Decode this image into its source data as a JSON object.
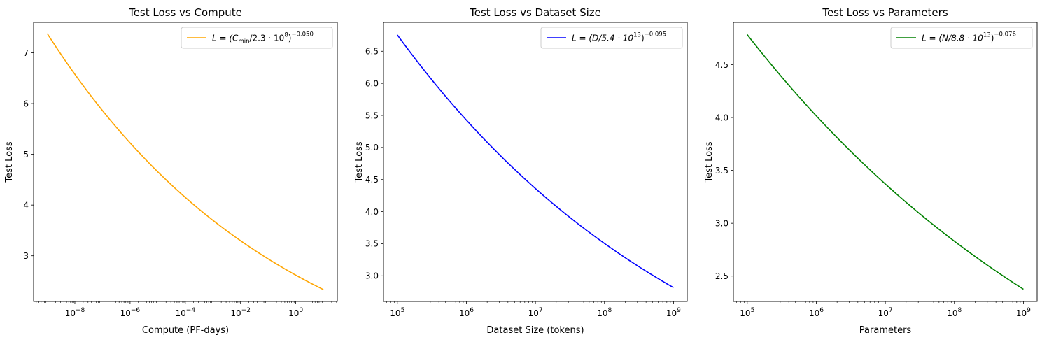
{
  "chart_data": [
    {
      "type": "line",
      "title": "Test Loss vs Compute",
      "xlabel": "Compute (PF-days)",
      "ylabel": "Test Loss",
      "xscale": "log",
      "xlim": [
        3.2e-10,
        32
      ],
      "ylim": [
        2.1,
        7.6
      ],
      "x_ticks": [
        {
          "exp": "−8",
          "value": 1e-08
        },
        {
          "exp": "−6",
          "value": 1e-06
        },
        {
          "exp": "−4",
          "value": 0.0001
        },
        {
          "exp": "−2",
          "value": 0.01
        },
        {
          "exp": "0",
          "value": 1
        }
      ],
      "y_ticks": [
        "3",
        "4",
        "5",
        "6",
        "7"
      ],
      "series": [
        {
          "name": "L = (C_min/2.3 · 10^8)^−0.050",
          "legend": {
            "main": "L = (C",
            "sub": "min",
            "rest": "/2.3 · 10",
            "exp1": "8",
            "close": ")",
            "exp2": "−0.050"
          },
          "color": "#ffa500",
          "x_range": [
            1e-09,
            10
          ],
          "exponent": -0.05,
          "scale": 230000000.0
        }
      ],
      "legend_position": "top-right"
    },
    {
      "type": "line",
      "title": "Test Loss vs Dataset Size",
      "xlabel": "Dataset Size (tokens)",
      "ylabel": "Test Loss",
      "xscale": "log",
      "xlim": [
        63000,
        1580000000.0
      ],
      "ylim": [
        2.6,
        6.95
      ],
      "x_ticks": [
        {
          "exp": "5",
          "value": 100000.0
        },
        {
          "exp": "6",
          "value": 1000000.0
        },
        {
          "exp": "7",
          "value": 10000000.0
        },
        {
          "exp": "8",
          "value": 100000000.0
        },
        {
          "exp": "9",
          "value": 1000000000.0
        }
      ],
      "y_ticks": [
        "3.0",
        "3.5",
        "4.0",
        "4.5",
        "5.0",
        "5.5",
        "6.0",
        "6.5"
      ],
      "series": [
        {
          "name": "L = (D/5.4 · 10^13)^−0.095",
          "legend": {
            "main": "L = (D/5.4 · 10",
            "exp1": "13",
            "close": ")",
            "exp2": "−0.095"
          },
          "color": "#0000ff",
          "x_range": [
            100000.0,
            1000000000.0
          ],
          "exponent": -0.095,
          "scale": 54000000000000.0
        }
      ],
      "legend_position": "top-right"
    },
    {
      "type": "line",
      "title": "Test Loss vs Parameters",
      "xlabel": "Parameters",
      "ylabel": "Test Loss",
      "xscale": "log",
      "xlim": [
        63000,
        1580000000.0
      ],
      "ylim": [
        2.26,
        4.9
      ],
      "x_ticks": [
        {
          "exp": "5",
          "value": 100000.0
        },
        {
          "exp": "6",
          "value": 1000000.0
        },
        {
          "exp": "7",
          "value": 10000000.0
        },
        {
          "exp": "8",
          "value": 100000000.0
        },
        {
          "exp": "9",
          "value": 1000000000.0
        }
      ],
      "y_ticks": [
        "2.5",
        "3.0",
        "3.5",
        "4.0",
        "4.5"
      ],
      "series": [
        {
          "name": "L = (N/8.8 · 10^13)^−0.076",
          "legend": {
            "main": "L = (N/8.8 · 10",
            "exp1": "13",
            "close": ")",
            "exp2": "−0.076"
          },
          "color": "#008000",
          "x_range": [
            100000.0,
            1000000000.0
          ],
          "exponent": -0.076,
          "scale": 88000000000000.0
        }
      ],
      "legend_position": "top-right"
    }
  ]
}
